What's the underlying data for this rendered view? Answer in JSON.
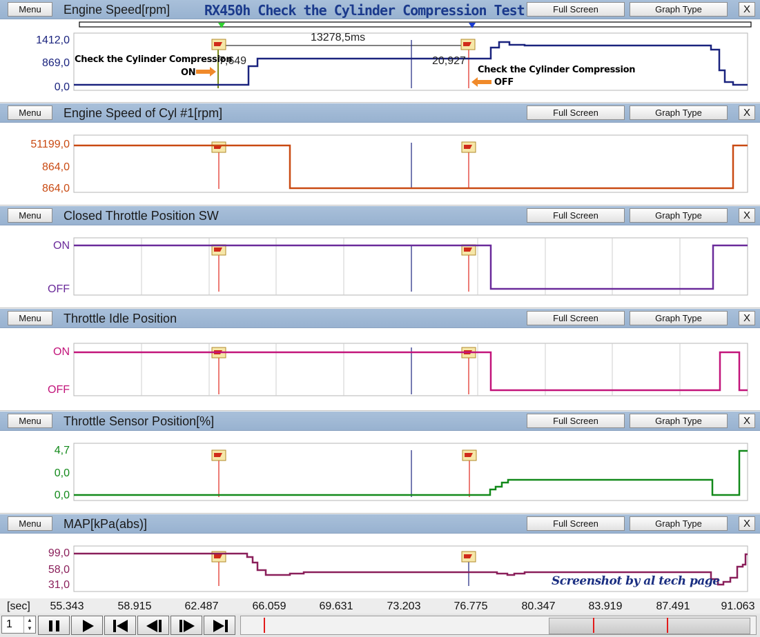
{
  "app": {
    "title": "RX450h Check the Cylinder Compression Test"
  },
  "buttons": {
    "menu": "Menu",
    "full_screen": "Full Screen",
    "graph_type": "Graph Type",
    "close": "X"
  },
  "panels": [
    {
      "id": "engine-speed",
      "title": "Engine Speed[rpm]",
      "y_labels": [
        "1412,0",
        "869,0",
        "0,0"
      ],
      "color": "#1a237e"
    },
    {
      "id": "engine-speed-cyl1",
      "title": "Engine Speed of Cyl #1[rpm]",
      "y_labels": [
        "51199,0",
        "864,0",
        "864,0"
      ],
      "color": "#c94a12"
    },
    {
      "id": "closed-throttle",
      "title": "Closed Throttle Position SW",
      "y_labels": [
        "ON",
        "OFF"
      ],
      "color": "#6a2a9a"
    },
    {
      "id": "throttle-idle",
      "title": "Throttle Idle Position",
      "y_labels": [
        "ON",
        "OFF"
      ],
      "color": "#c2147a"
    },
    {
      "id": "throttle-sensor",
      "title": "Throttle Sensor Position[%]",
      "y_labels": [
        "4,7",
        "0,0",
        "0,0"
      ],
      "color": "#12891a"
    },
    {
      "id": "map",
      "title": "MAP[kPa(abs)]",
      "y_labels": [
        "99,0",
        "58,0",
        "31,0"
      ],
      "color": "#8a1f5a"
    }
  ],
  "cursors": {
    "interval": "13278,5ms",
    "value_a": "7,649",
    "value_b": "20,927"
  },
  "annotations": {
    "on_note": "Check the Cylinder Compression",
    "on_state": "ON",
    "off_note": "Check the Cylinder Compression",
    "off_state": "OFF"
  },
  "time_axis": {
    "unit": "[sec]",
    "labels": [
      "55.343",
      "58.915",
      "62.487",
      "66.059",
      "69.631",
      "73.203",
      "76.775",
      "80.347",
      "83.919",
      "87.491",
      "91.063"
    ]
  },
  "toolbar": {
    "page": "1"
  },
  "watermark": "Screenshot by al tech page",
  "colors": {
    "cursor_red": "#e0241b",
    "cursor_blue": "#1a237e",
    "header": "#a9c0da",
    "marker": "#f2c94c"
  }
}
